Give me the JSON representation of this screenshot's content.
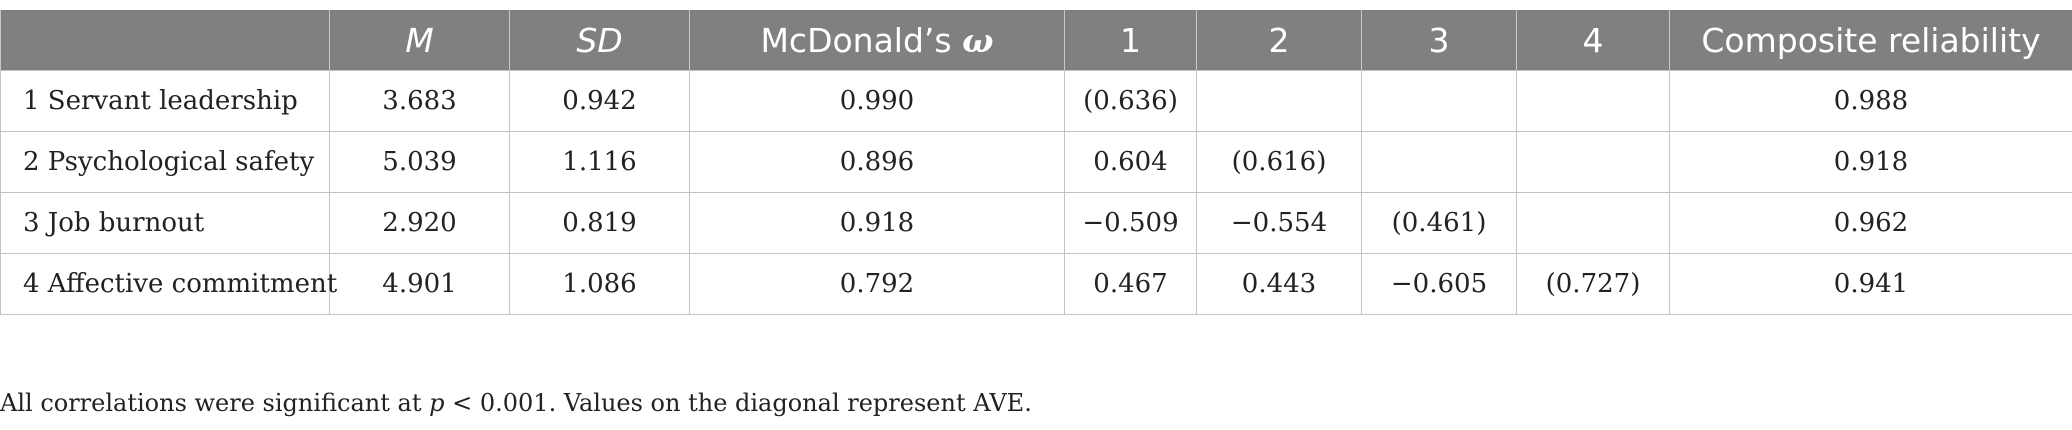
{
  "table": {
    "headers": {
      "col0": "",
      "col1": "M",
      "col2": "SD",
      "col3_prefix": "McDonald’s ",
      "col3_symbol": "ω",
      "col4": "1",
      "col5": "2",
      "col6": "3",
      "col7": "4",
      "col8": "Composite reliability"
    },
    "rows": [
      {
        "label": "1 Servant leadership",
        "m": "3.683",
        "sd": "0.942",
        "omega": "0.990",
        "c1": "(0.636)",
        "c2": "",
        "c3": "",
        "c4": "",
        "cr": "0.988"
      },
      {
        "label": "2 Psychological safety",
        "m": "5.039",
        "sd": "1.116",
        "omega": "0.896",
        "c1": "0.604",
        "c2": "(0.616)",
        "c3": "",
        "c4": "",
        "cr": "0.918"
      },
      {
        "label": "3 Job burnout",
        "m": "2.920",
        "sd": "0.819",
        "omega": "0.918",
        "c1": "−0.509",
        "c2": "−0.554",
        "c3": "(0.461)",
        "c4": "",
        "cr": "0.962"
      },
      {
        "label": "4 Affective commitment",
        "m": "4.901",
        "sd": "1.086",
        "omega": "0.792",
        "c1": "0.467",
        "c2": "0.443",
        "c3": "−0.605",
        "c4": "(0.727)",
        "cr": "0.941"
      }
    ]
  },
  "footnote": {
    "before": "All correlations were significant at ",
    "p": "p",
    "after": " < 0.001. Values on the diagonal represent AVE."
  }
}
